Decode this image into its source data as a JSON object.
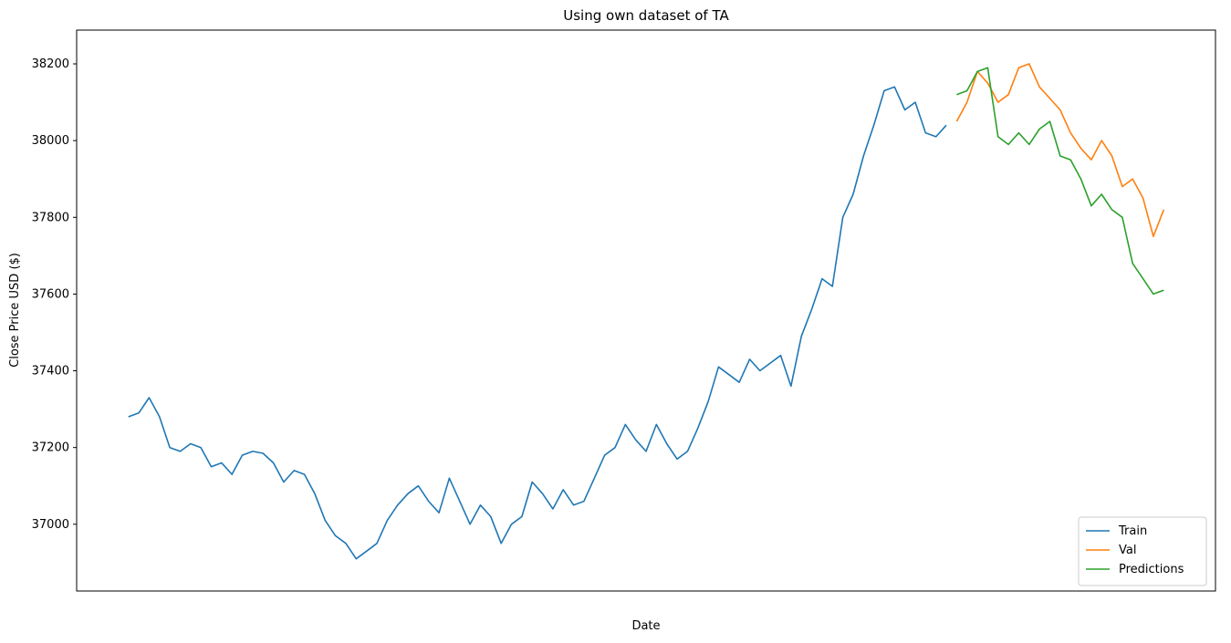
{
  "chart_data": {
    "type": "line",
    "title": "Using own dataset of TA",
    "x_label": "Date",
    "y_label": "Close Price USD ($)",
    "xlim": [
      -5,
      105
    ],
    "ylim": [
      36826,
      38288
    ],
    "yticks": [
      37000,
      37200,
      37400,
      37600,
      37800,
      38000,
      38200
    ],
    "legend": "lower right",
    "series": [
      {
        "name": "Train",
        "color": "#1f77b4",
        "values": [
          37280,
          37290,
          37330,
          37280,
          37200,
          37190,
          37210,
          37200,
          37150,
          37160,
          37130,
          37180,
          37190,
          37185,
          37160,
          37110,
          37140,
          37130,
          37080,
          37010,
          36970,
          36950,
          36910,
          36930,
          36950,
          37010,
          37050,
          37080,
          37100,
          37060,
          37030,
          37120,
          37060,
          37000,
          37050,
          37020,
          36950,
          37000,
          37020,
          37110,
          37080,
          37040,
          37090,
          37050,
          37060,
          37120,
          37180,
          37200,
          37260,
          37220,
          37190,
          37260,
          37210,
          37170,
          37190,
          37250,
          37320,
          37410,
          37390,
          37370,
          37430,
          37400,
          37420,
          37440,
          37360,
          37490,
          37560,
          37640,
          37620,
          37800,
          37860,
          37960,
          38040,
          38130,
          38140,
          38080,
          38100,
          38020,
          38010,
          38040,
          null,
          null,
          null,
          null,
          null,
          null,
          null,
          null,
          null,
          null,
          null,
          null,
          null,
          null,
          null,
          null,
          null,
          null,
          null,
          null,
          null
        ]
      },
      {
        "name": "Val",
        "color": "#ff7f0e",
        "values": [
          null,
          null,
          null,
          null,
          null,
          null,
          null,
          null,
          null,
          null,
          null,
          null,
          null,
          null,
          null,
          null,
          null,
          null,
          null,
          null,
          null,
          null,
          null,
          null,
          null,
          null,
          null,
          null,
          null,
          null,
          null,
          null,
          null,
          null,
          null,
          null,
          null,
          null,
          null,
          null,
          null,
          null,
          null,
          null,
          null,
          null,
          null,
          null,
          null,
          null,
          null,
          null,
          null,
          null,
          null,
          null,
          null,
          null,
          null,
          null,
          null,
          null,
          null,
          null,
          null,
          null,
          null,
          null,
          null,
          null,
          null,
          null,
          null,
          null,
          null,
          null,
          null,
          null,
          null,
          null,
          38050,
          38100,
          38180,
          38150,
          38100,
          38120,
          38190,
          38200,
          38140,
          38110,
          38080,
          38020,
          37980,
          37950,
          38000,
          37960,
          37880,
          37900,
          37850,
          37750,
          37820
        ]
      },
      {
        "name": "Predictions",
        "color": "#2ca02c",
        "values": [
          null,
          null,
          null,
          null,
          null,
          null,
          null,
          null,
          null,
          null,
          null,
          null,
          null,
          null,
          null,
          null,
          null,
          null,
          null,
          null,
          null,
          null,
          null,
          null,
          null,
          null,
          null,
          null,
          null,
          null,
          null,
          null,
          null,
          null,
          null,
          null,
          null,
          null,
          null,
          null,
          null,
          null,
          null,
          null,
          null,
          null,
          null,
          null,
          null,
          null,
          null,
          null,
          null,
          null,
          null,
          null,
          null,
          null,
          null,
          null,
          null,
          null,
          null,
          null,
          null,
          null,
          null,
          null,
          null,
          null,
          null,
          null,
          null,
          null,
          null,
          null,
          null,
          null,
          null,
          null,
          38120,
          38130,
          38180,
          38190,
          38010,
          37990,
          38020,
          37990,
          38030,
          38050,
          37960,
          37950,
          37900,
          37830,
          37860,
          37820,
          37800,
          37680,
          37640,
          37600,
          37610
        ]
      }
    ]
  }
}
